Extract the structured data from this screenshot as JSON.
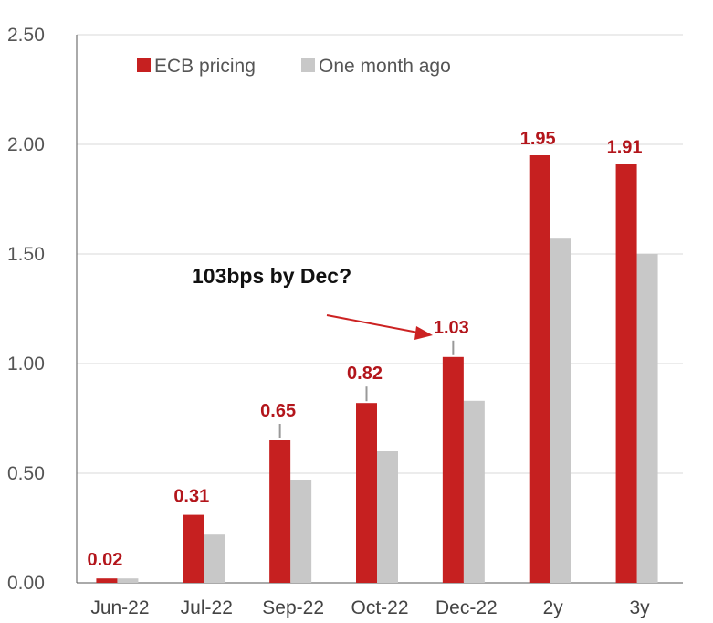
{
  "chart_data": {
    "type": "bar",
    "categories": [
      "Jun-22",
      "Jul-22",
      "Sep-22",
      "Oct-22",
      "Dec-22",
      "2y",
      "3y"
    ],
    "series": [
      {
        "name": "ECB pricing",
        "values": [
          0.02,
          0.31,
          0.65,
          0.82,
          1.03,
          1.95,
          1.91
        ],
        "color": "#c62020"
      },
      {
        "name": "One month ago",
        "values": [
          0.02,
          0.22,
          0.47,
          0.6,
          0.83,
          1.57,
          1.5
        ],
        "color": "#c8c8c8"
      }
    ],
    "data_labels": [
      "0.02",
      "0.31",
      "0.65",
      "0.82",
      "1.03",
      "1.95",
      "1.91"
    ],
    "y_ticks": [
      "0.00",
      "0.50",
      "1.00",
      "1.50",
      "2.00",
      "2.50"
    ],
    "ylim": [
      0,
      2.5
    ],
    "grid": true,
    "legend_position": "top-left",
    "annotation": {
      "text": "103bps by Dec?",
      "target_category": "Dec-22"
    },
    "colors": {
      "label": "#b3151b",
      "grid": "#d9d9d9",
      "arrow": "#cc2222"
    }
  }
}
